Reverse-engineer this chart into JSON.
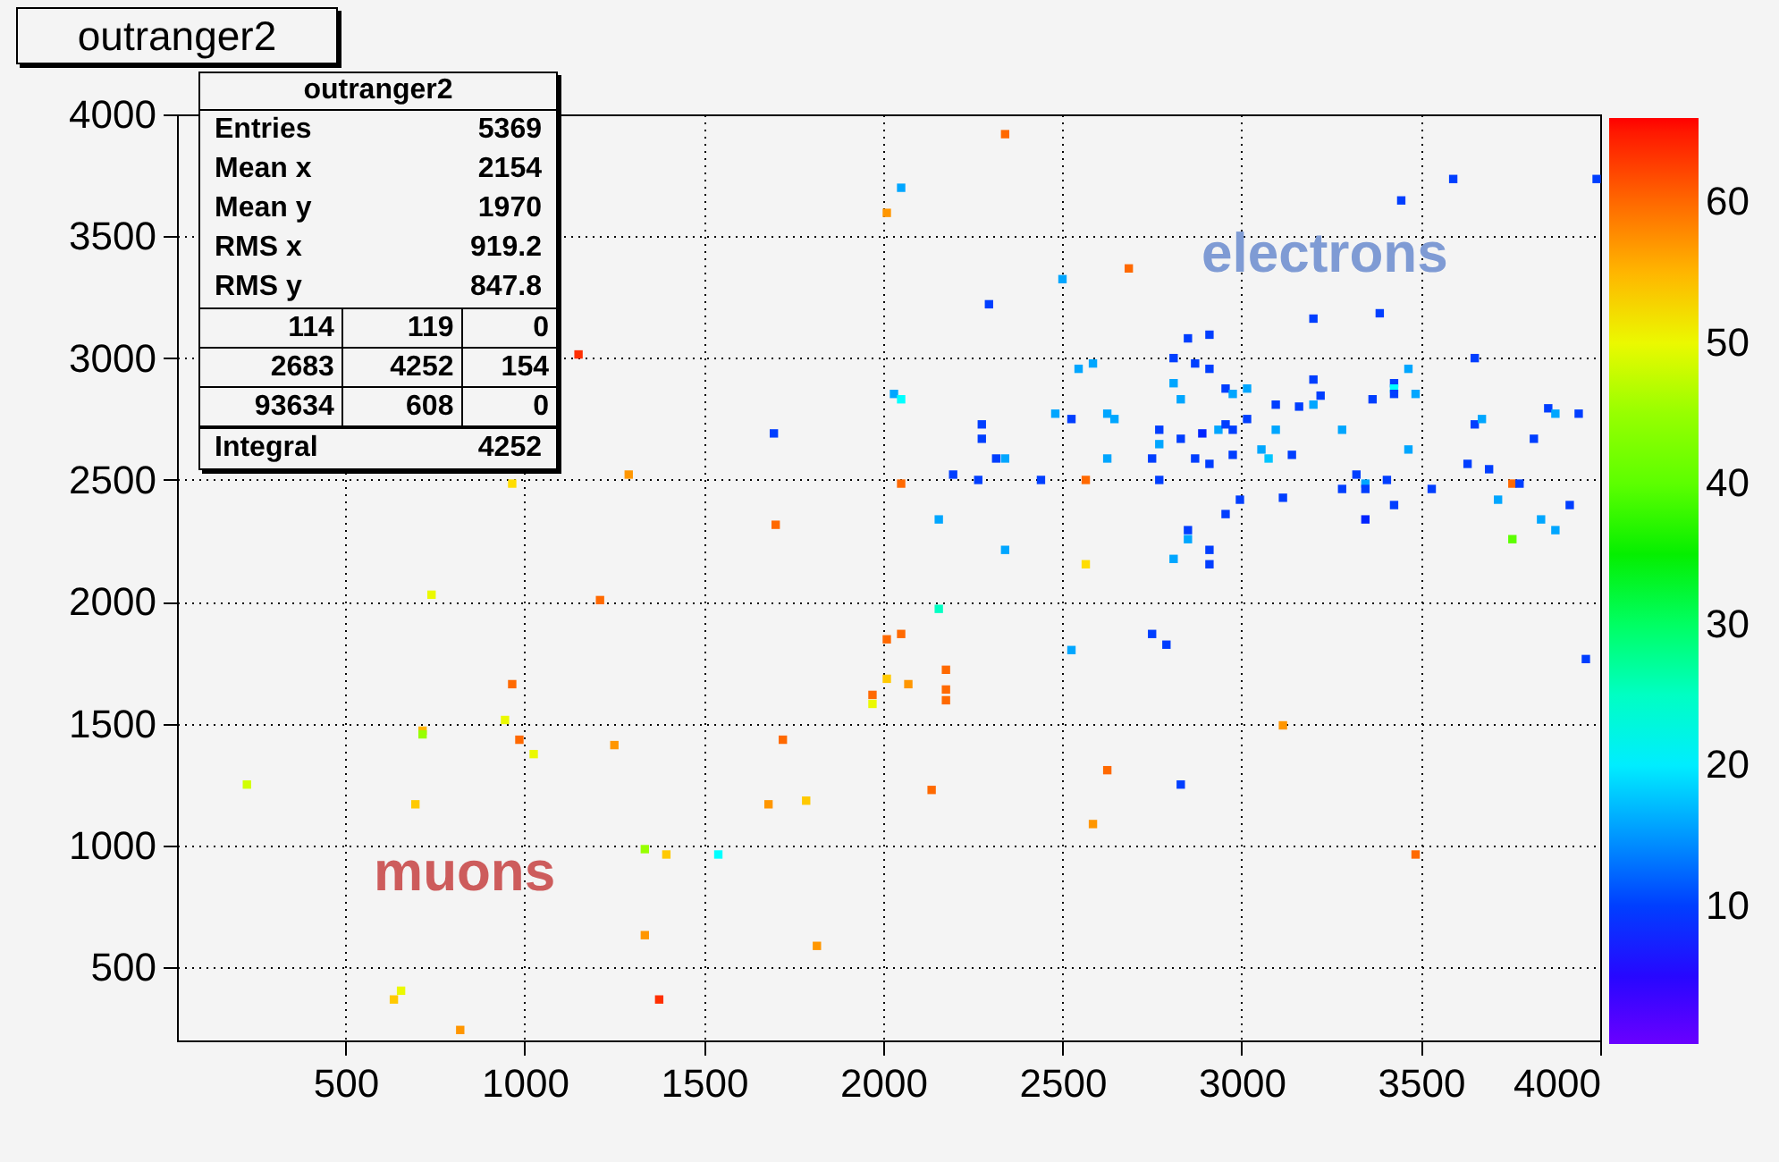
{
  "chart_data": {
    "type": "scatter",
    "title": "outranger2",
    "grid": true,
    "xlim": [
      30,
      4000
    ],
    "xticks": [
      500,
      1000,
      1500,
      2000,
      2500,
      3000,
      3500,
      4000
    ],
    "ylim": [
      200,
      4000
    ],
    "yticks": [
      500,
      1000,
      1500,
      2000,
      2500,
      3000,
      3500,
      4000
    ],
    "clim": [
      0.2,
      66
    ],
    "cticks": [
      10,
      20,
      30,
      40,
      50,
      60
    ],
    "x": [
      2340,
      2050,
      2010,
      2685,
      2500,
      2295,
      3445,
      3590,
      3990,
      3200,
      3385,
      2850,
      2910,
      2810,
      2870,
      2910,
      2545,
      2585,
      2810,
      2830,
      2955,
      2975,
      3015,
      3095,
      3160,
      3200,
      3220,
      3200,
      3365,
      3425,
      3425,
      3425,
      3465,
      3485,
      3650,
      2030,
      2050,
      2275,
      2275,
      2480,
      2525,
      2625,
      2645,
      2770,
      2770,
      2830,
      2890,
      2935,
      2955,
      2975,
      3015,
      3095,
      3280,
      2975,
      3055,
      3075,
      3140,
      3465,
      2315,
      2340,
      2625,
      2750,
      2870,
      2910,
      2195,
      2265,
      2440,
      2050,
      2565,
      2770,
      2995,
      3115,
      3280,
      3320,
      3345,
      3345,
      3405,
      3425,
      3530,
      3630,
      3650,
      3670,
      3690,
      3755,
      3775,
      3815,
      3855,
      3875,
      3940,
      3715,
      3915,
      3835,
      3875,
      3755,
      2155,
      2340,
      2565,
      2850,
      2850,
      2955,
      2910,
      2810,
      2910,
      3345,
      1150,
      1695,
      965,
      1290,
      1700,
      740,
      1210,
      2010,
      2010,
      1970,
      1970,
      965,
      945,
      715,
      715,
      985,
      1025,
      1250,
      1720,
      225,
      695,
      1680,
      1785,
      1335,
      1395,
      1540,
      1335,
      1815,
      655,
      635,
      1375,
      820,
      2155,
      2050,
      2175,
      2070,
      2175,
      2175,
      2135,
      2525,
      2750,
      2790,
      3960,
      3115,
      2625,
      2830,
      2585,
      3485
    ],
    "values": [
      3919,
      3699,
      3596,
      3368,
      3324,
      3221,
      3647,
      3735,
      3735,
      3162,
      3184,
      3081,
      3096,
      3000,
      2978,
      2956,
      2956,
      2978,
      2897,
      2831,
      2875,
      2853,
      2875,
      2809,
      2801,
      2912,
      2846,
      2809,
      2831,
      2897,
      2875,
      2853,
      2956,
      2853,
      3000,
      2853,
      2831,
      2728,
      2669,
      2772,
      2750,
      2772,
      2750,
      2706,
      2647,
      2669,
      2691,
      2706,
      2728,
      2706,
      2750,
      2706,
      2706,
      2603,
      2625,
      2588,
      2603,
      2625,
      2588,
      2588,
      2588,
      2588,
      2588,
      2566,
      2522,
      2500,
      2500,
      2485,
      2500,
      2500,
      2419,
      2427,
      2463,
      2522,
      2485,
      2463,
      2500,
      2397,
      2463,
      2566,
      2728,
      2750,
      2544,
      2485,
      2485,
      2669,
      2794,
      2772,
      2772,
      2419,
      2397,
      2338,
      2294,
      2257,
      2338,
      2213,
      2154,
      2294,
      2257,
      2360,
      2213,
      2176,
      2154,
      2338,
      3015,
      2691,
      2485,
      2522,
      2316,
      2029,
      2007,
      1846,
      1684,
      1618,
      1581,
      1662,
      1515,
      1471,
      1456,
      1434,
      1375,
      1412,
      1434,
      1250,
      1169,
      1169,
      1184,
      985,
      963,
      963,
      632,
      588,
      404,
      368,
      368,
      243,
      1971,
      1868,
      1721,
      1662,
      1640,
      1596,
      1228,
      1802,
      1868,
      1824,
      1765,
      1493,
      1309,
      1250,
      1088,
      963
    ],
    "cvalues": [
      60,
      16,
      57,
      60,
      16,
      10,
      10,
      10,
      10,
      10,
      10,
      10,
      10,
      10,
      10,
      10,
      16,
      16,
      16,
      16,
      10,
      16,
      16,
      10,
      10,
      10,
      10,
      16,
      10,
      10,
      21,
      10,
      16,
      16,
      10,
      16,
      21,
      10,
      10,
      16,
      10,
      16,
      16,
      10,
      16,
      10,
      8,
      16,
      10,
      10,
      10,
      16,
      16,
      10,
      16,
      18,
      10,
      16,
      10,
      16,
      16,
      10,
      10,
      10,
      10,
      10,
      10,
      60,
      60,
      10,
      10,
      10,
      10,
      10,
      16,
      10,
      10,
      10,
      10,
      10,
      10,
      16,
      10,
      60,
      10,
      10,
      10,
      16,
      10,
      16,
      10,
      16,
      16,
      40,
      16,
      16,
      53,
      10,
      16,
      10,
      10,
      16,
      10,
      8,
      63,
      10,
      53,
      57,
      60,
      50,
      60,
      60,
      54,
      60,
      50,
      60,
      50,
      55,
      45,
      60,
      50,
      57,
      60,
      48,
      54,
      57,
      54,
      45,
      54,
      21,
      57,
      57,
      50,
      54,
      63,
      57,
      25,
      60,
      60,
      57,
      60,
      60,
      60,
      16,
      10,
      10,
      10,
      57,
      60,
      10,
      57,
      60
    ],
    "annotations": [
      "Entries",
      "5369",
      "Mean x",
      "2154",
      "Mean y",
      "1970",
      "RMS x",
      "919.2",
      "RMS y",
      "847.8",
      "114",
      "119",
      "0",
      "2683",
      "4252",
      "154",
      "93634",
      "608",
      "0",
      "Integral",
      "4252",
      "electrons",
      "muons"
    ]
  }
}
